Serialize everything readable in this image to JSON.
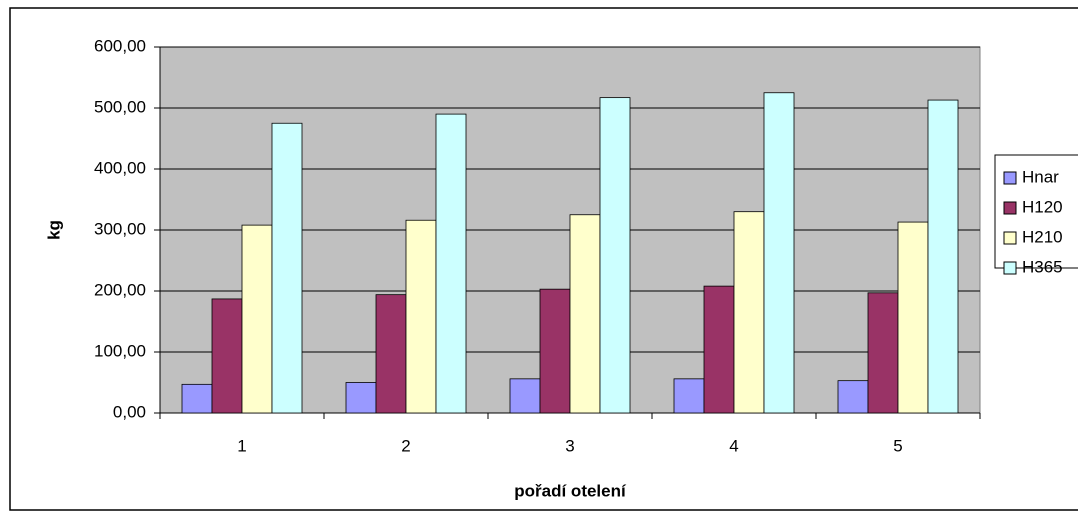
{
  "chart_data": {
    "type": "bar",
    "categories": [
      "1",
      "2",
      "3",
      "4",
      "5"
    ],
    "series": [
      {
        "name": "Hnar",
        "color": "#9999ff",
        "values": [
          47,
          50,
          56,
          56,
          53
        ]
      },
      {
        "name": "H120",
        "color": "#993366",
        "values": [
          187,
          194,
          203,
          208,
          197
        ]
      },
      {
        "name": "H210",
        "color": "#ffffcc",
        "values": [
          308,
          316,
          325,
          330,
          313
        ]
      },
      {
        "name": "H365",
        "color": "#ccffff",
        "values": [
          475,
          490,
          517,
          525,
          513
        ]
      }
    ],
    "ylim": [
      0,
      600
    ],
    "yticks": [
      {
        "value": 0,
        "label": "0,00"
      },
      {
        "value": 100,
        "label": "100,00"
      },
      {
        "value": 200,
        "label": "200,00"
      },
      {
        "value": 300,
        "label": "300,00"
      },
      {
        "value": 400,
        "label": "400,00"
      },
      {
        "value": 500,
        "label": "500,00"
      },
      {
        "value": 600,
        "label": "600,00"
      }
    ],
    "ylabel": "kg",
    "xlabel": "pořadí otelení",
    "grid": true,
    "plot_background": "#c0c0c0",
    "legend": "right"
  }
}
